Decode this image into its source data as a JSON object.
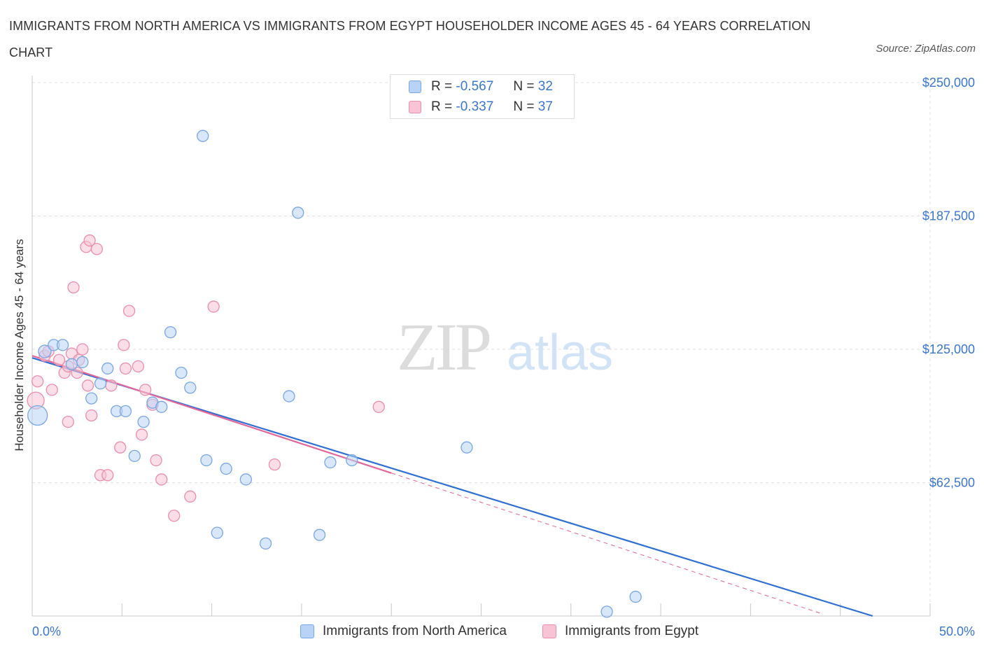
{
  "header": {
    "title": "IMMIGRANTS FROM NORTH AMERICA VS IMMIGRANTS FROM EGYPT HOUSEHOLDER INCOME AGES 45 - 64 YEARS CORRELATION CHART",
    "source": "Source: ZipAtlas.com"
  },
  "watermark": {
    "zip": "ZIP",
    "atlas": "atlas"
  },
  "legend": {
    "r_label": "R =",
    "n_label": "N =",
    "blue": {
      "r": "-0.567",
      "n": "32"
    },
    "pink": {
      "r": "-0.337",
      "n": "37"
    }
  },
  "colors": {
    "blue_fill": "#b9d3f7",
    "blue_stroke": "#7aa6e0",
    "blue_line": "#2f6fd0",
    "pink_fill": "#f8c3d4",
    "pink_stroke": "#e88fab",
    "pink_line": "#e0679a",
    "tick_label": "#3b76c8",
    "grid": "#e2e2e2"
  },
  "chart_data": {
    "type": "scatter",
    "title": "IMMIGRANTS FROM NORTH AMERICA VS IMMIGRANTS FROM EGYPT HOUSEHOLDER INCOME AGES 45 - 64 YEARS CORRELATION CHART",
    "xlabel": "",
    "ylabel": "Householder Income Ages 45 - 64 years",
    "xlim": [
      0,
      50
    ],
    "ylim": [
      0,
      250000
    ],
    "x_tick_labels": [
      "0.0%",
      "50.0%"
    ],
    "y_ticks": [
      62500,
      125000,
      187500,
      250000
    ],
    "y_tick_labels": [
      "$62,500",
      "$125,000",
      "$187,500",
      "$250,000"
    ],
    "grid": true,
    "legend_position": "top-center",
    "series": [
      {
        "name": "Immigrants from North America",
        "color": "#b9d3f7",
        "points": [
          [
            0.3,
            94000,
            14
          ],
          [
            0.7,
            124000,
            9
          ],
          [
            1.2,
            127000,
            8
          ],
          [
            1.7,
            127000,
            8
          ],
          [
            2.2,
            118000,
            8
          ],
          [
            2.8,
            119000,
            8
          ],
          [
            3.3,
            102000,
            8
          ],
          [
            3.8,
            109000,
            8
          ],
          [
            4.2,
            116000,
            8
          ],
          [
            4.7,
            96000,
            8
          ],
          [
            5.2,
            96000,
            8
          ],
          [
            5.7,
            75000,
            8
          ],
          [
            6.2,
            91000,
            8
          ],
          [
            6.7,
            100000,
            8
          ],
          [
            7.2,
            98000,
            8
          ],
          [
            7.7,
            133000,
            8
          ],
          [
            8.3,
            114000,
            8
          ],
          [
            8.8,
            107000,
            8
          ],
          [
            9.5,
            225000,
            8
          ],
          [
            9.7,
            73000,
            8
          ],
          [
            10.3,
            39000,
            8
          ],
          [
            10.8,
            69000,
            8
          ],
          [
            11.9,
            64000,
            8
          ],
          [
            13.0,
            34000,
            8
          ],
          [
            14.3,
            103000,
            8
          ],
          [
            14.8,
            189000,
            8
          ],
          [
            16.0,
            38000,
            8
          ],
          [
            16.6,
            72000,
            8
          ],
          [
            17.8,
            73000,
            8
          ],
          [
            24.2,
            79000,
            8
          ],
          [
            32.0,
            2000,
            8
          ],
          [
            33.6,
            9000,
            8
          ]
        ]
      },
      {
        "name": "Immigrants from Egypt",
        "color": "#f8c3d4",
        "points": [
          [
            0.2,
            101000,
            12
          ],
          [
            0.3,
            110000,
            8
          ],
          [
            0.7,
            122000,
            8
          ],
          [
            0.9,
            124000,
            8
          ],
          [
            1.1,
            106000,
            8
          ],
          [
            1.5,
            120000,
            8
          ],
          [
            1.8,
            114000,
            8
          ],
          [
            2.0,
            117000,
            8
          ],
          [
            2.0,
            91000,
            8
          ],
          [
            2.2,
            123000,
            8
          ],
          [
            2.3,
            154000,
            8
          ],
          [
            2.5,
            114000,
            8
          ],
          [
            2.6,
            120000,
            8
          ],
          [
            2.8,
            125000,
            8
          ],
          [
            3.0,
            173000,
            8
          ],
          [
            3.1,
            108000,
            8
          ],
          [
            3.2,
            176000,
            8
          ],
          [
            3.3,
            94000,
            8
          ],
          [
            3.6,
            172000,
            8
          ],
          [
            3.8,
            66000,
            8
          ],
          [
            4.2,
            66000,
            8
          ],
          [
            4.4,
            108000,
            8
          ],
          [
            4.9,
            79000,
            8
          ],
          [
            5.1,
            127000,
            8
          ],
          [
            5.2,
            116000,
            8
          ],
          [
            5.4,
            143000,
            8
          ],
          [
            5.9,
            117000,
            8
          ],
          [
            6.1,
            85000,
            8
          ],
          [
            6.3,
            106000,
            8
          ],
          [
            6.7,
            99000,
            8
          ],
          [
            6.9,
            73000,
            8
          ],
          [
            7.2,
            64000,
            8
          ],
          [
            7.9,
            47000,
            8
          ],
          [
            8.8,
            56000,
            8
          ],
          [
            10.1,
            145000,
            8
          ],
          [
            13.5,
            71000,
            8
          ],
          [
            19.3,
            98000,
            8
          ]
        ]
      }
    ],
    "trend_lines": [
      {
        "series": "Immigrants from North America",
        "from": [
          0,
          121000
        ],
        "to": [
          46.8,
          0
        ]
      },
      {
        "series": "Immigrants from Egypt",
        "from": [
          0,
          122000
        ],
        "to": [
          20,
          67000
        ],
        "dashed_to": [
          44,
          1000
        ]
      }
    ]
  },
  "bottom_legend": {
    "items": [
      {
        "label": "Immigrants from North America"
      },
      {
        "label": "Immigrants from Egypt"
      }
    ]
  }
}
